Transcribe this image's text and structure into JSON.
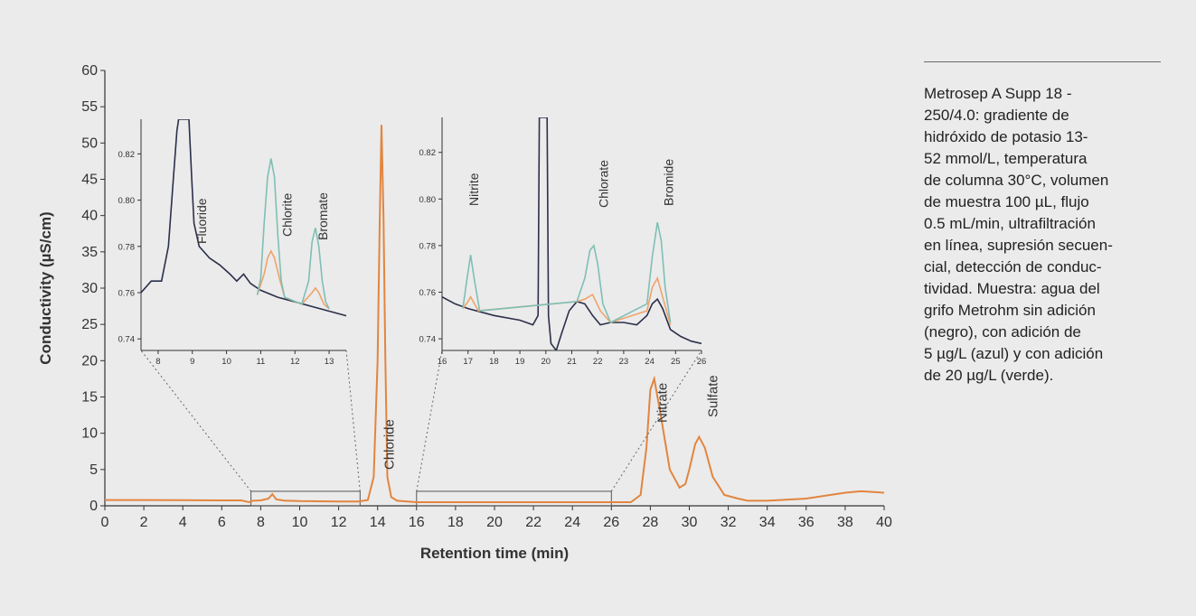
{
  "caption": {
    "lines": [
      "Metrosep A Supp 18 -",
      "250/4.0: gradiente de",
      "hidróxido de potasio 13-",
      "52 mmol/L, temperatura",
      "de columna 30°C, volumen",
      "de muestra 100 µL, flujo",
      "0.5 mL/min, ultrafiltración",
      "en línea, supresión secuen-",
      "cial, detección de conduc-",
      "tividad. Muestra: agua del",
      "grifo Metrohm sin adición",
      "(negro), con adición de",
      "5 µg/L (azul) y con adición",
      "de 20 µg/L (verde)."
    ]
  },
  "colors": {
    "background": "#ebebeb",
    "trace_black": "#2b2f4a",
    "trace_orange": "#f0a36a",
    "trace_teal": "#7fbfb4",
    "main_trace": "#e2853f"
  },
  "chart_data": [
    {
      "type": "line",
      "title": "",
      "xlabel": "Retention time (min)",
      "ylabel": "Conductivity (µS/cm)",
      "xlim": [
        0,
        40
      ],
      "ylim": [
        0,
        60
      ],
      "xticks": [
        0,
        2,
        4,
        6,
        8,
        10,
        12,
        14,
        16,
        18,
        20,
        22,
        24,
        26,
        28,
        30,
        32,
        34,
        36,
        38,
        40
      ],
      "yticks": [
        0,
        5,
        10,
        15,
        20,
        25,
        30,
        35,
        40,
        45,
        50,
        55,
        60
      ],
      "grid": false,
      "zoom_regions": [
        {
          "x": [
            7.5,
            13.1
          ],
          "y": [
            0,
            2
          ]
        },
        {
          "x": [
            16,
            26
          ],
          "y": [
            0,
            2
          ]
        }
      ],
      "annotations": [
        {
          "text": "Chloride",
          "x": 14.6
        },
        {
          "text": "Nitrate",
          "x": 28.6
        },
        {
          "text": "Sulfate",
          "x": 31.2
        }
      ],
      "series": [
        {
          "x": [
            0,
            2,
            4,
            6,
            7,
            7.4,
            7.6,
            8,
            8.4,
            8.6,
            8.8,
            9.2,
            10,
            12,
            13,
            13.5,
            13.8,
            14.0,
            14.1,
            14.2,
            14.3,
            14.4,
            14.5,
            14.7,
            15,
            16,
            18,
            20,
            22,
            24,
            26,
            27,
            27.5,
            27.8,
            28.0,
            28.2,
            28.5,
            29,
            29.5,
            29.8,
            30,
            30.3,
            30.5,
            30.8,
            31.2,
            31.8,
            32.5,
            33,
            34,
            36,
            38,
            38.8,
            39.5,
            40
          ],
          "values": [
            0.8,
            0.8,
            0.78,
            0.75,
            0.75,
            0.5,
            0.7,
            0.75,
            1.0,
            1.6,
            0.9,
            0.72,
            0.65,
            0.6,
            0.6,
            0.8,
            4,
            20,
            38,
            52.5,
            40,
            20,
            4,
            1.2,
            0.7,
            0.5,
            0.5,
            0.5,
            0.5,
            0.5,
            0.5,
            0.5,
            1.5,
            8,
            16,
            17.5,
            13,
            5,
            2.5,
            3,
            5,
            8.5,
            9.5,
            8,
            4,
            1.5,
            1.0,
            0.7,
            0.7,
            1.0,
            1.8,
            2.0,
            1.9,
            1.8
          ]
        }
      ]
    },
    {
      "type": "line",
      "title": "",
      "xlim": [
        7.5,
        13.5
      ],
      "ylim": [
        0.735,
        0.835
      ],
      "xticks": [
        8,
        9,
        10,
        11,
        12,
        13
      ],
      "yticks": [
        0.74,
        0.76,
        0.78,
        0.8,
        0.82
      ],
      "annotations": [
        {
          "text": "Fluoride",
          "x": 9.4
        },
        {
          "text": "Chlorite",
          "x": 11.9
        },
        {
          "text": "Bromate",
          "x": 12.95
        }
      ],
      "series": [
        {
          "x": [
            7.5,
            7.8,
            8.1,
            8.3,
            8.45,
            8.55,
            8.6,
            8.62,
            8.8,
            8.9,
            8.98,
            9.05,
            9.2,
            9.5,
            9.8,
            10.1,
            10.3,
            10.5,
            10.7,
            11.0,
            11.5,
            12.0,
            12.5,
            13.0,
            13.5
          ],
          "values": [
            0.76,
            0.765,
            0.765,
            0.78,
            0.81,
            0.83,
            0.835,
            0.835,
            0.835,
            0.835,
            0.81,
            0.79,
            0.78,
            0.775,
            0.772,
            0.768,
            0.765,
            0.768,
            0.764,
            0.761,
            0.758,
            0.756,
            0.754,
            0.752,
            0.75
          ]
        },
        {
          "x": [
            10.9,
            11.1,
            11.2,
            11.3,
            11.4,
            11.55,
            11.7,
            12.2,
            12.5,
            12.6,
            12.7,
            12.85,
            13.0
          ],
          "values": [
            0.759,
            0.768,
            0.775,
            0.778,
            0.775,
            0.766,
            0.758,
            0.755,
            0.76,
            0.762,
            0.76,
            0.755,
            0.753
          ]
        },
        {
          "x": [
            10.9,
            11.0,
            11.1,
            11.2,
            11.3,
            11.4,
            11.5,
            11.6,
            11.7,
            12.2,
            12.4,
            12.5,
            12.6,
            12.7,
            12.8,
            12.9,
            13.0
          ],
          "values": [
            0.759,
            0.766,
            0.79,
            0.81,
            0.818,
            0.81,
            0.785,
            0.765,
            0.758,
            0.755,
            0.765,
            0.782,
            0.788,
            0.78,
            0.765,
            0.756,
            0.753
          ]
        }
      ]
    },
    {
      "type": "line",
      "title": "",
      "xlim": [
        16,
        26
      ],
      "ylim": [
        0.735,
        0.835
      ],
      "xticks": [
        16,
        17,
        18,
        19,
        20,
        21,
        22,
        23,
        24,
        25,
        26
      ],
      "yticks": [
        0.74,
        0.76,
        0.78,
        0.8,
        0.82
      ],
      "annotations": [
        {
          "text": "Nitrite",
          "x": 17.4
        },
        {
          "text": "Chlorate",
          "x": 22.4
        },
        {
          "text": "Bromide",
          "x": 24.9
        }
      ],
      "series": [
        {
          "x": [
            16,
            16.5,
            17,
            18,
            19,
            19.5,
            19.7,
            19.75,
            20.05,
            20.1,
            20.2,
            20.4,
            20.6,
            20.9,
            21.2,
            21.5,
            21.8,
            22.1,
            22.5,
            23,
            23.5,
            23.9,
            24.1,
            24.3,
            24.5,
            24.8,
            25.2,
            25.6,
            26
          ],
          "values": [
            0.758,
            0.755,
            0.753,
            0.75,
            0.748,
            0.746,
            0.75,
            0.835,
            0.835,
            0.75,
            0.738,
            0.735,
            0.742,
            0.752,
            0.756,
            0.755,
            0.75,
            0.746,
            0.747,
            0.747,
            0.746,
            0.75,
            0.755,
            0.757,
            0.753,
            0.744,
            0.741,
            0.739,
            0.738
          ]
        },
        {
          "x": [
            16.8,
            17.0,
            17.1,
            17.2,
            17.4,
            21.2,
            21.5,
            21.8,
            22.1,
            22.5,
            23.9,
            24.1,
            24.3,
            24.5,
            24.8
          ],
          "values": [
            0.753,
            0.756,
            0.758,
            0.756,
            0.752,
            0.756,
            0.757,
            0.759,
            0.752,
            0.747,
            0.752,
            0.762,
            0.766,
            0.758,
            0.746
          ]
        },
        {
          "x": [
            16.8,
            16.95,
            17.1,
            17.25,
            17.45,
            21.2,
            21.5,
            21.7,
            21.85,
            22.0,
            22.2,
            22.5,
            23.9,
            24.1,
            24.3,
            24.45,
            24.6,
            24.8
          ],
          "values": [
            0.753,
            0.765,
            0.776,
            0.765,
            0.752,
            0.756,
            0.766,
            0.778,
            0.78,
            0.772,
            0.755,
            0.747,
            0.755,
            0.775,
            0.79,
            0.782,
            0.762,
            0.747
          ]
        }
      ]
    }
  ]
}
